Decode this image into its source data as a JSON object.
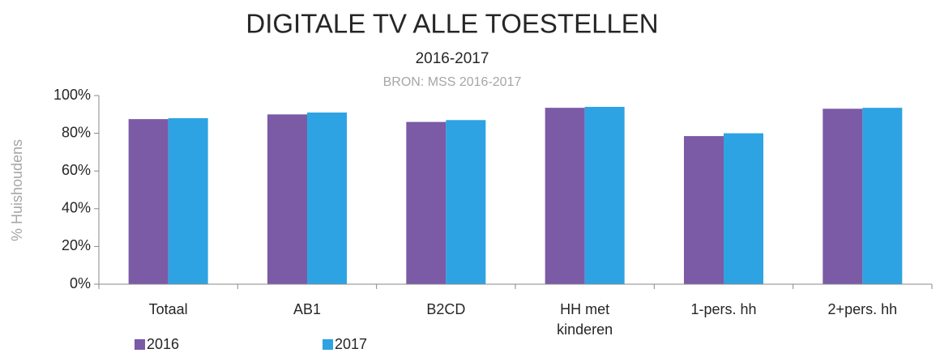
{
  "chart_data": {
    "type": "bar",
    "title": "DIGITALE TV ALLE TOESTELLEN",
    "subtitle": "2016-2017",
    "source": "BRON: MSS 2016-2017",
    "ylabel": "% Huishoudens",
    "categories": [
      "Totaal",
      "AB1",
      "B2CD",
      "HH met kinderen",
      "1-pers. hh",
      "2+pers. hh"
    ],
    "series": [
      {
        "name": "2016",
        "color": "#7b5aa6",
        "values": [
          87.5,
          90,
          86,
          93.5,
          78.5,
          93
        ]
      },
      {
        "name": "2017",
        "color": "#2ea3e3",
        "values": [
          88,
          91,
          87,
          94,
          80,
          93.5
        ]
      }
    ],
    "ylim": [
      0,
      100
    ],
    "yticks": [
      {
        "value": 0,
        "label": "0%"
      },
      {
        "value": 20,
        "label": "20%"
      },
      {
        "value": 40,
        "label": "40%"
      },
      {
        "value": 60,
        "label": "60%"
      },
      {
        "value": 80,
        "label": "80%"
      },
      {
        "value": 100,
        "label": "100%"
      }
    ],
    "grid": false,
    "legend": "bottom-left"
  }
}
